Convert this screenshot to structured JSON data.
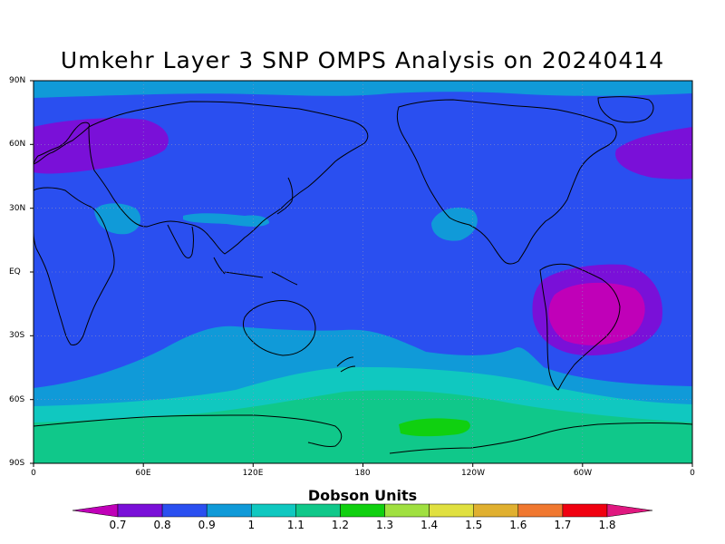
{
  "title": "Umkehr Layer 3 SNP OMPS Analysis on 20240414",
  "map": {
    "projection": "cylindrical equidistant",
    "lat_range": [
      -90,
      90
    ],
    "lon_range": [
      0,
      360
    ],
    "lat_ticks": [
      {
        "value": 90,
        "label": "90N"
      },
      {
        "value": 60,
        "label": "60N"
      },
      {
        "value": 30,
        "label": "30N"
      },
      {
        "value": 0,
        "label": "EQ"
      },
      {
        "value": -30,
        "label": "30S"
      },
      {
        "value": -60,
        "label": "60S"
      },
      {
        "value": -90,
        "label": "90S"
      }
    ],
    "lon_ticks": [
      {
        "value": 0,
        "label": "0"
      },
      {
        "value": 60,
        "label": "60E"
      },
      {
        "value": 120,
        "label": "120E"
      },
      {
        "value": 180,
        "label": "180"
      },
      {
        "value": 240,
        "label": "120W"
      },
      {
        "value": 300,
        "label": "60W"
      },
      {
        "value": 360,
        "label": "0"
      }
    ],
    "grid": "dotted"
  },
  "colorbar": {
    "title": "Dobson Units",
    "labels": [
      "0.7",
      "0.8",
      "0.9",
      "1",
      "1.1",
      "1.2",
      "1.3",
      "1.4",
      "1.5",
      "1.6",
      "1.7",
      "1.8"
    ],
    "colors": [
      "#c000b8",
      "#7a10d8",
      "#2a4ff0",
      "#109ad8",
      "#10c8c0",
      "#10c88a",
      "#10d010",
      "#a0e040",
      "#e0e040",
      "#e0b030",
      "#f07830",
      "#f00010",
      "#e01880"
    ]
  },
  "colors": {
    "band_08": "#2a4ff0",
    "band_09": "#109ad8",
    "band_10": "#10c8c0",
    "band_11": "#10c88a",
    "band_12": "#10d010",
    "band_07": "#7a10d8",
    "band_06": "#c000b8"
  }
}
